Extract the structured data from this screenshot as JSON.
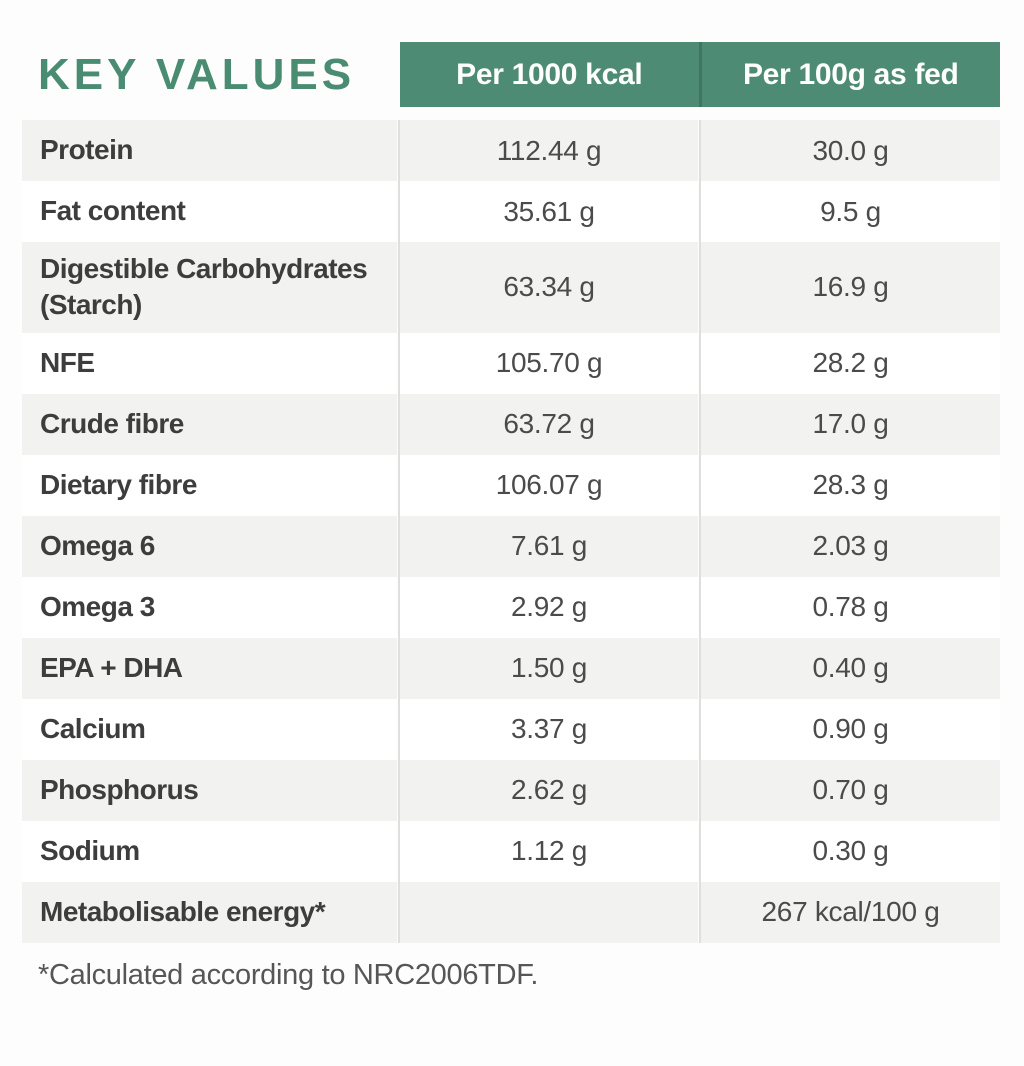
{
  "chart_data": {
    "type": "table",
    "title": "KEY VALUES",
    "columns": [
      "Per 1000 kcal",
      "Per 100g as fed"
    ],
    "rows": [
      {
        "label": "Protein",
        "per_1000_kcal": "112.44 g",
        "per_100g": "30.0 g"
      },
      {
        "label": "Fat content",
        "per_1000_kcal": "35.61 g",
        "per_100g": "9.5 g"
      },
      {
        "label": "Digestible Carbohydrates (Starch)",
        "per_1000_kcal": "63.34 g",
        "per_100g": "16.9 g"
      },
      {
        "label": "NFE",
        "per_1000_kcal": "105.70 g",
        "per_100g": "28.2 g"
      },
      {
        "label": "Crude fibre",
        "per_1000_kcal": "63.72 g",
        "per_100g": "17.0 g"
      },
      {
        "label": "Dietary fibre",
        "per_1000_kcal": "106.07 g",
        "per_100g": "28.3 g"
      },
      {
        "label": "Omega 6",
        "per_1000_kcal": "7.61 g",
        "per_100g": "2.03 g"
      },
      {
        "label": "Omega 3",
        "per_1000_kcal": "2.92 g",
        "per_100g": "0.78 g"
      },
      {
        "label": "EPA + DHA",
        "per_1000_kcal": "1.50 g",
        "per_100g": "0.40 g"
      },
      {
        "label": "Calcium",
        "per_1000_kcal": "3.37 g",
        "per_100g": "0.90 g"
      },
      {
        "label": "Phosphorus",
        "per_1000_kcal": "2.62 g",
        "per_100g": "0.70 g"
      },
      {
        "label": "Sodium",
        "per_1000_kcal": "1.12 g",
        "per_100g": "0.30 g"
      },
      {
        "label": "Metabolisable energy*",
        "per_1000_kcal": "",
        "per_100g": "267 kcal/100 g"
      }
    ],
    "footnote": "*Calculated according to NRC2006TDF.",
    "layout": {
      "row_striping": "odd rows shaded",
      "value_alignment": "center"
    }
  },
  "colors": {
    "header_green": "#4e8b74",
    "header_divider_green": "#3d7663",
    "title_green": "#4a8c71",
    "row_stripe_gray": "#f2f2f1",
    "label_text": "#3d3d3d",
    "value_text": "#4b4b4b",
    "divider_line": "#e0dfdd"
  }
}
